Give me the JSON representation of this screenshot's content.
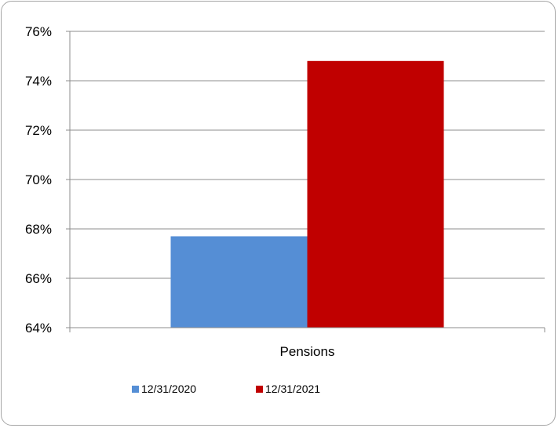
{
  "chart_data": {
    "type": "bar",
    "categories": [
      "Pensions"
    ],
    "series": [
      {
        "name": "12/31/2020",
        "values": [
          67.7
        ],
        "color": "#558ed5"
      },
      {
        "name": "12/31/2021",
        "values": [
          74.8
        ],
        "color": "#c00000"
      }
    ],
    "ylim": [
      64,
      76
    ],
    "yticks": [
      "64%",
      "66%",
      "68%",
      "70%",
      "72%",
      "74%",
      "76%"
    ],
    "ytick_values": [
      64,
      66,
      68,
      70,
      72,
      74,
      76
    ],
    "grid": true,
    "legend": "bottom"
  }
}
